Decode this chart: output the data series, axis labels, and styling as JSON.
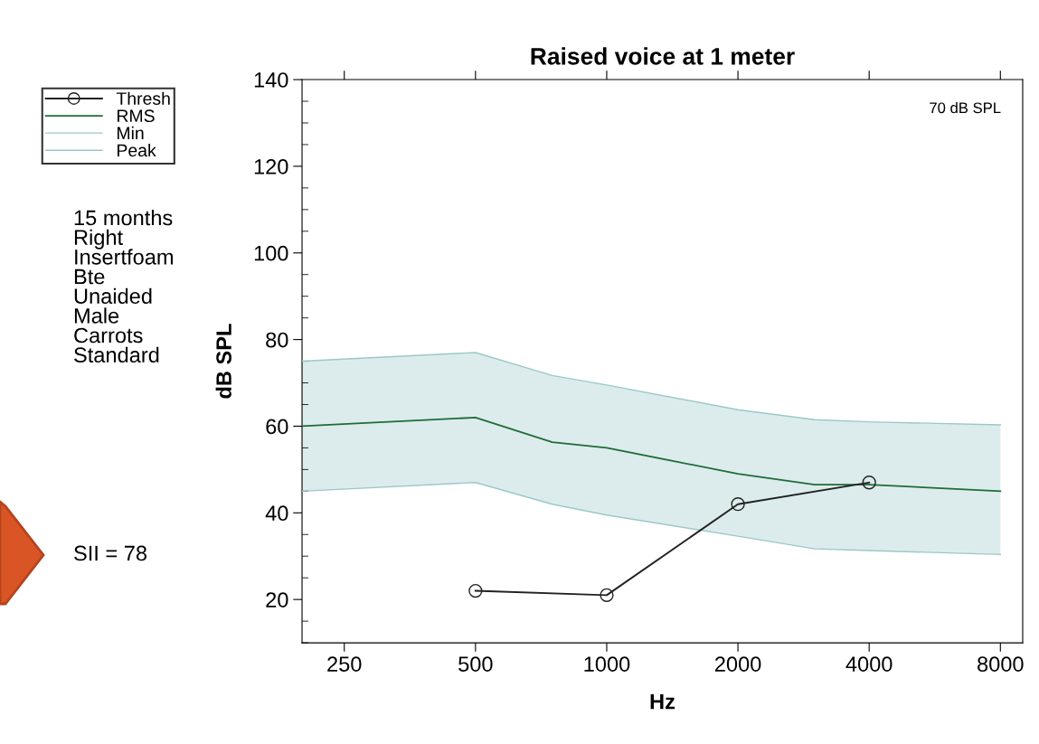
{
  "chart_data": {
    "type": "line",
    "title": "Raised voice at 1 meter",
    "xlabel": "Hz",
    "ylabel": "dB SPL",
    "log": "x",
    "xlim": [
      200,
      9000
    ],
    "xticks": [
      250,
      500,
      1000,
      2000,
      4000,
      8000
    ],
    "ylim": [
      10,
      140
    ],
    "yticks": [
      20,
      40,
      60,
      80,
      100,
      120,
      140
    ],
    "grid": false,
    "legend": "left",
    "annotations": [
      "70 dB SPL",
      "15 months\nRight\nInsertfoam\nBte\nUnaided\nMale\nCarrots\nStandard",
      "SII = 78"
    ],
    "series": [
      {
        "name": "Thresh",
        "color": "#222222",
        "marker": "circle",
        "x": [
          500,
          1000,
          2000,
          4000
        ],
        "values": [
          22,
          21,
          42,
          47
        ]
      },
      {
        "name": "RMS",
        "color": "#1f6b3a",
        "x": [
          200,
          500,
          750,
          1000,
          2000,
          3000,
          4000,
          8000
        ],
        "values": [
          60,
          62,
          56.3,
          55,
          49,
          46.5,
          46.5,
          45
        ]
      },
      {
        "name": "Min",
        "color": "#9cc8c8",
        "x": [
          200,
          500,
          750,
          1000,
          2000,
          3000,
          4000,
          8000
        ],
        "values": [
          45,
          47,
          42,
          39.5,
          34.6,
          31.7,
          31.3,
          30.4
        ]
      },
      {
        "name": "Peak",
        "color": "#9cc8c8",
        "x": [
          200,
          500,
          750,
          1000,
          2000,
          3000,
          4000,
          8000
        ],
        "values": [
          75,
          77,
          71.7,
          69.5,
          63.8,
          61.5,
          61,
          60.3
        ],
        "lower": [
          45,
          47,
          42,
          39.5,
          34.6,
          31.7,
          31.3,
          30.4
        ],
        "upper": [
          75,
          77,
          71.7,
          69.5,
          63.8,
          61.5,
          61,
          60.3
        ]
      }
    ]
  }
}
